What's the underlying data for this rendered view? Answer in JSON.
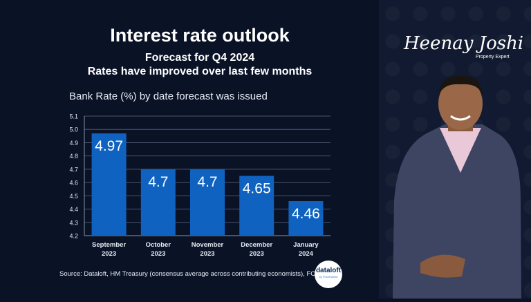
{
  "header": {
    "title": "Interest rate outlook",
    "subtitle": "Forecast for Q4 2024",
    "tagline": "Rates have improved over last few months"
  },
  "branding": {
    "signature": "Heenay Joshi",
    "role": "Property Expert",
    "logo": "dataloft",
    "logo_sub": "by PriceHubble"
  },
  "source": "Source: Dataloft, HM Treasury (consensus average across contributing economists), FCA",
  "colors": {
    "background": "#0a1226",
    "bar": "#0f62c0",
    "grid": "#4a5570"
  },
  "chart_data": {
    "type": "bar",
    "title": "Bank Rate (%) by date forecast was issued",
    "categories": [
      [
        "September",
        "2023"
      ],
      [
        "October",
        "2023"
      ],
      [
        "November",
        "2023"
      ],
      [
        "December",
        "2023"
      ],
      [
        "January",
        "2024"
      ]
    ],
    "values": [
      4.97,
      4.7,
      4.7,
      4.65,
      4.46
    ],
    "value_labels": [
      "4.97",
      "4.7",
      "4.7",
      "4.65",
      "4.46"
    ],
    "ylim": [
      4.2,
      5.1
    ],
    "yticks": [
      "4.2",
      "4.3",
      "4.4",
      "4.5",
      "4.6",
      "4.7",
      "4.8",
      "4.9",
      "5.0",
      "5.1"
    ],
    "grid": true
  }
}
